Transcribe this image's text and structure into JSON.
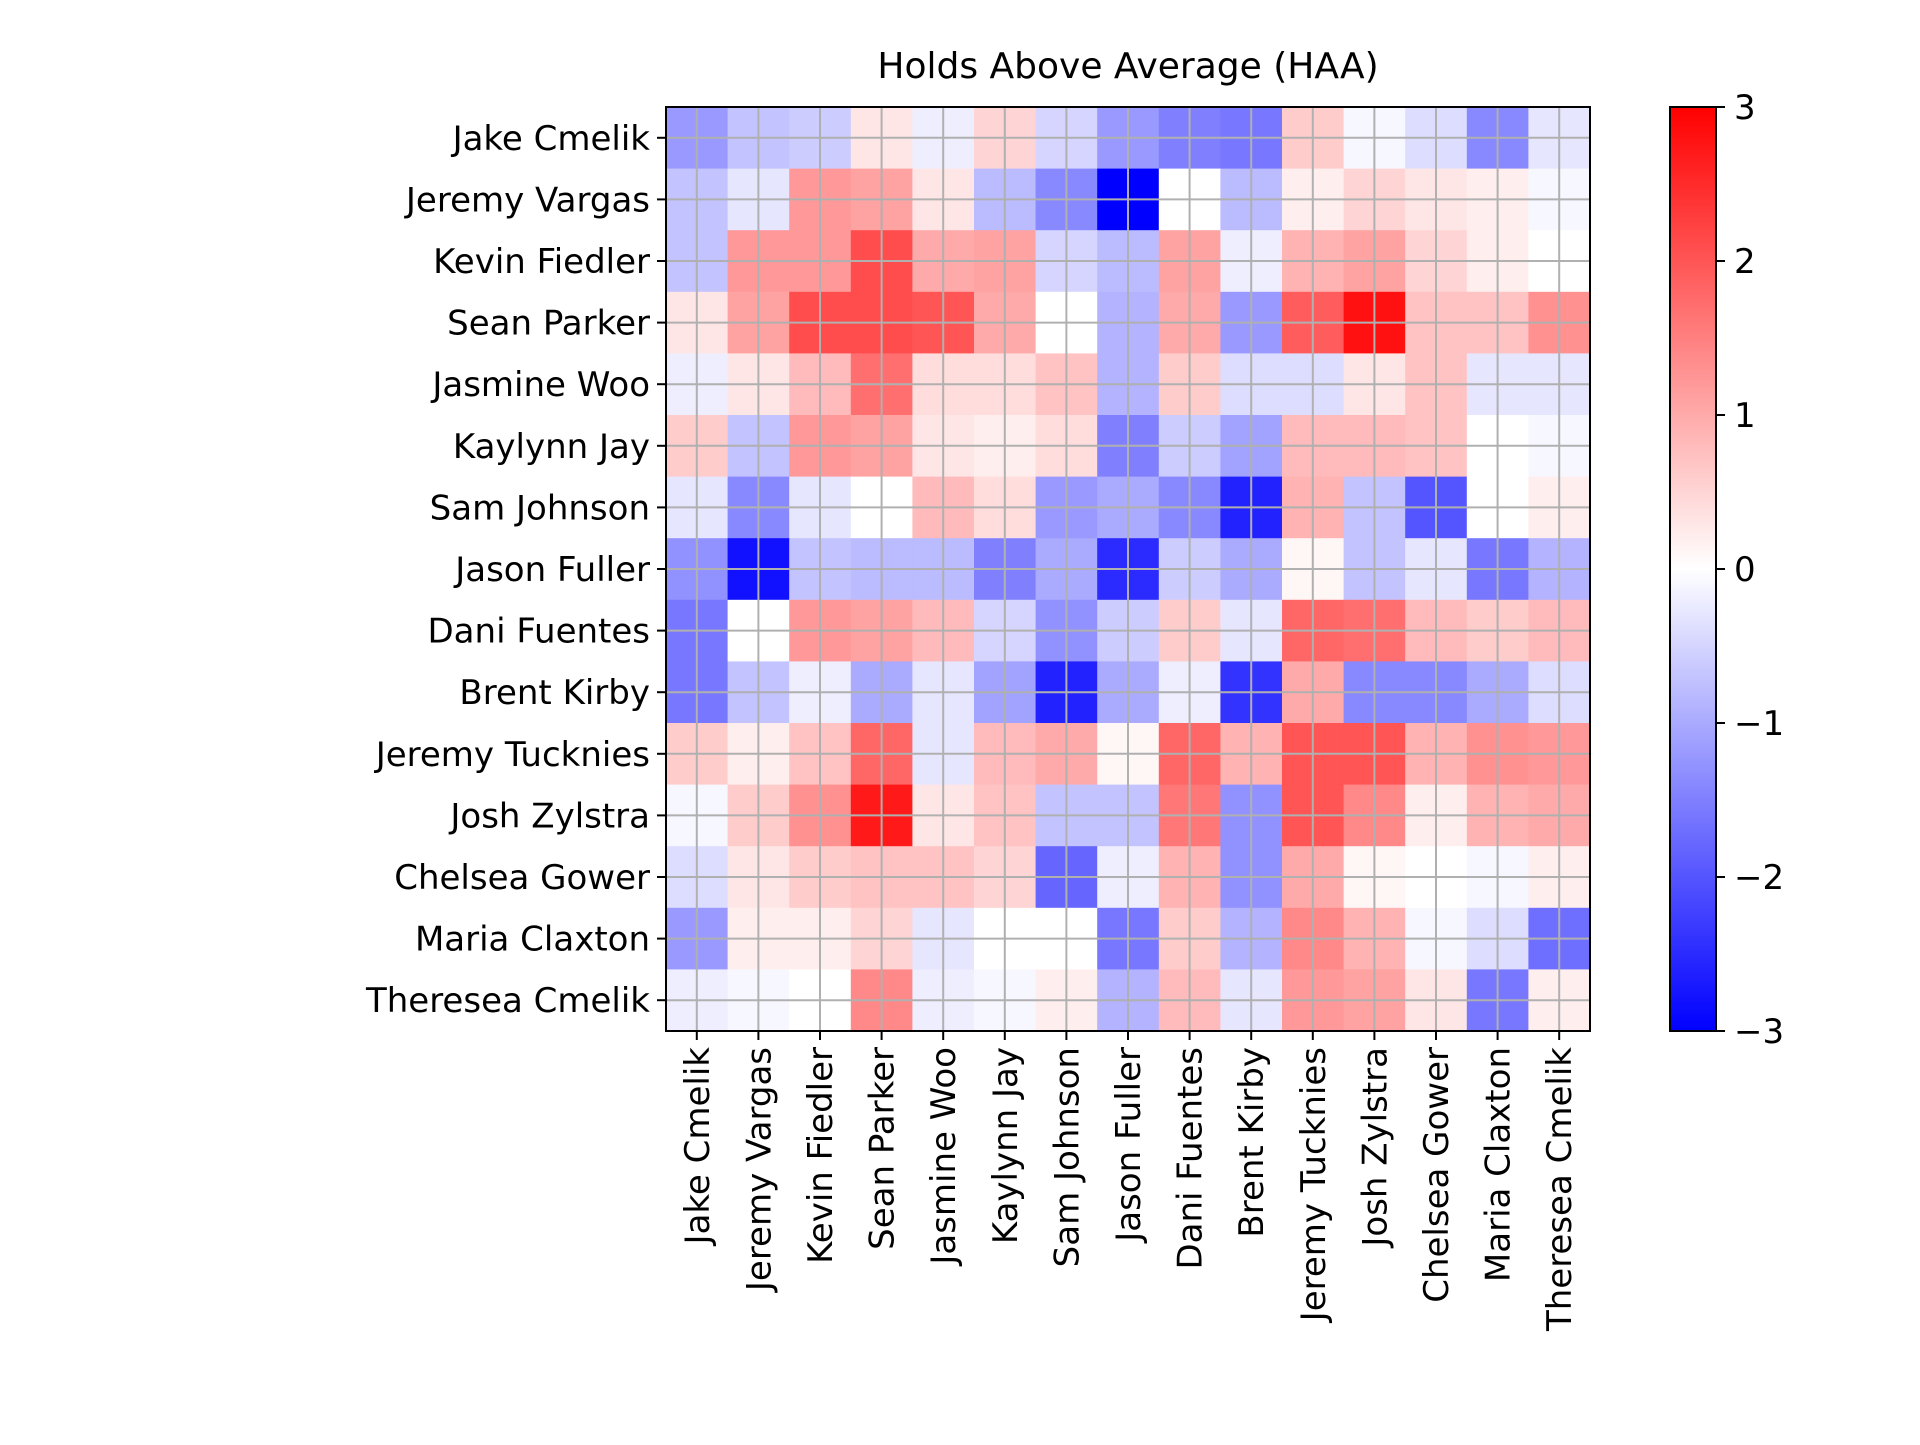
{
  "chart_data": {
    "type": "heatmap",
    "title": "Holds Above Average (HAA)",
    "rows": [
      "Jake Cmelik",
      "Jeremy Vargas",
      "Kevin Fiedler",
      "Sean Parker",
      "Jasmine Woo",
      "Kaylynn Jay",
      "Sam Johnson",
      "Jason Fuller",
      "Dani Fuentes",
      "Brent Kirby",
      "Jeremy Tucknies",
      "Josh Zylstra",
      "Chelsea Gower",
      "Maria Claxton",
      "Theresea Cmelik"
    ],
    "columns": [
      "Jake Cmelik",
      "Jeremy Vargas",
      "Kevin Fiedler",
      "Sean Parker",
      "Jasmine Woo",
      "Kaylynn Jay",
      "Sam Johnson",
      "Jason Fuller",
      "Dani Fuentes",
      "Brent Kirby",
      "Jeremy Tucknies",
      "Josh Zylstra",
      "Chelsea Gower",
      "Maria Claxton",
      "Theresea Cmelik"
    ],
    "values": [
      [
        -1.2,
        -0.7,
        -0.6,
        0.3,
        -0.2,
        0.5,
        -0.5,
        -1.2,
        -1.5,
        -1.6,
        0.6,
        -0.1,
        -0.4,
        -1.4,
        -0.3
      ],
      [
        -0.7,
        -0.3,
        1.2,
        1.1,
        0.3,
        -0.8,
        -1.4,
        -3.0,
        0.0,
        -0.8,
        0.2,
        0.5,
        0.3,
        0.2,
        -0.1
      ],
      [
        -0.7,
        1.2,
        1.2,
        2.1,
        1.0,
        1.1,
        -0.5,
        -0.8,
        1.1,
        -0.2,
        0.9,
        1.1,
        0.5,
        0.2,
        0.0
      ],
      [
        0.3,
        1.1,
        2.1,
        2.1,
        2.0,
        1.0,
        0.0,
        -0.9,
        1.0,
        -1.2,
        1.9,
        2.8,
        0.7,
        0.7,
        1.3
      ],
      [
        -0.2,
        0.3,
        0.8,
        1.7,
        0.4,
        0.4,
        0.7,
        -0.9,
        0.6,
        -0.4,
        -0.4,
        0.3,
        0.7,
        -0.3,
        -0.3
      ],
      [
        0.6,
        -0.7,
        1.2,
        1.1,
        0.3,
        0.2,
        0.4,
        -1.5,
        -0.6,
        -1.1,
        0.8,
        0.8,
        0.7,
        0.0,
        -0.1
      ],
      [
        -0.3,
        -1.4,
        -0.3,
        0.0,
        0.8,
        0.4,
        -1.2,
        -1.0,
        -1.4,
        -2.6,
        0.9,
        -0.7,
        -2.0,
        0.0,
        0.2
      ],
      [
        -1.3,
        -2.8,
        -0.7,
        -0.8,
        -0.8,
        -1.5,
        -1.0,
        -2.5,
        -0.6,
        -1.0,
        0.1,
        -0.7,
        -0.3,
        -1.6,
        -0.9
      ],
      [
        -1.6,
        0.0,
        1.2,
        1.1,
        0.8,
        -0.5,
        -1.3,
        -0.6,
        0.6,
        -0.3,
        1.8,
        1.7,
        0.8,
        0.6,
        0.8
      ],
      [
        -1.6,
        -0.7,
        -0.2,
        -1.0,
        -0.3,
        -1.1,
        -2.6,
        -1.0,
        -0.2,
        -2.4,
        1.0,
        -1.4,
        -1.4,
        -1.0,
        -0.4
      ],
      [
        0.6,
        0.2,
        0.7,
        1.8,
        -0.3,
        0.8,
        1.0,
        0.1,
        1.8,
        0.9,
        2.0,
        2.0,
        0.9,
        1.3,
        1.2
      ],
      [
        -0.1,
        0.6,
        1.3,
        2.7,
        0.3,
        0.7,
        -0.7,
        -0.7,
        1.6,
        -1.3,
        2.0,
        1.4,
        0.2,
        0.9,
        1.0
      ],
      [
        -0.4,
        0.3,
        0.6,
        0.7,
        0.7,
        0.5,
        -1.8,
        -0.2,
        0.9,
        -1.3,
        1.0,
        0.1,
        0.0,
        -0.1,
        0.2
      ],
      [
        -1.2,
        0.2,
        0.2,
        0.5,
        -0.3,
        0.0,
        0.0,
        -1.6,
        0.6,
        -0.9,
        1.4,
        0.9,
        -0.1,
        -0.4,
        -1.7
      ],
      [
        -0.2,
        -0.1,
        0.0,
        1.4,
        -0.2,
        -0.1,
        0.2,
        -0.9,
        0.8,
        -0.3,
        1.2,
        1.1,
        0.3,
        -1.6,
        0.2
      ]
    ],
    "colormap": "bwr",
    "vmin": -3,
    "vmax": 3,
    "colorbar_ticks": [
      "−3",
      "−2",
      "−1",
      "0",
      "1",
      "2",
      "3"
    ],
    "grid": true
  }
}
